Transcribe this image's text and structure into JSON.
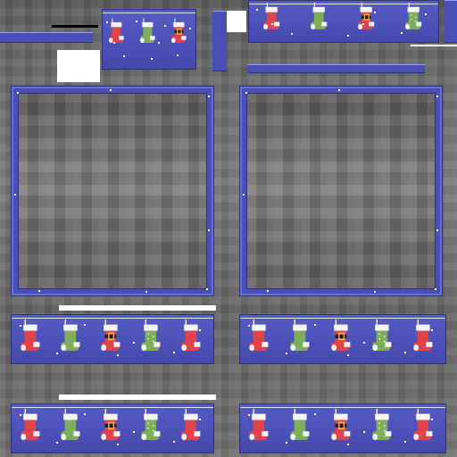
{
  "texture": {
    "colors": {
      "frame_blue": "#4a4fb8",
      "frame_dark": "#2d2f7a",
      "sock_red": "#e0434b",
      "sock_green": "#7fae5a",
      "sock_white": "#f4f4f4",
      "buckle_black": "#1b1b1b",
      "buckle_gold": "#f2c232"
    },
    "sock_set": [
      {
        "name": "red-stocking",
        "icon": "stocking-red-icon"
      },
      {
        "name": "green-stocking",
        "icon": "stocking-green-icon"
      },
      {
        "name": "buckle-stocking",
        "icon": "stocking-buckle-icon"
      },
      {
        "name": "dotted-green-stocking",
        "icon": "stocking-dotted-icon"
      },
      {
        "name": "red-stocking",
        "icon": "stocking-red-icon"
      }
    ]
  }
}
